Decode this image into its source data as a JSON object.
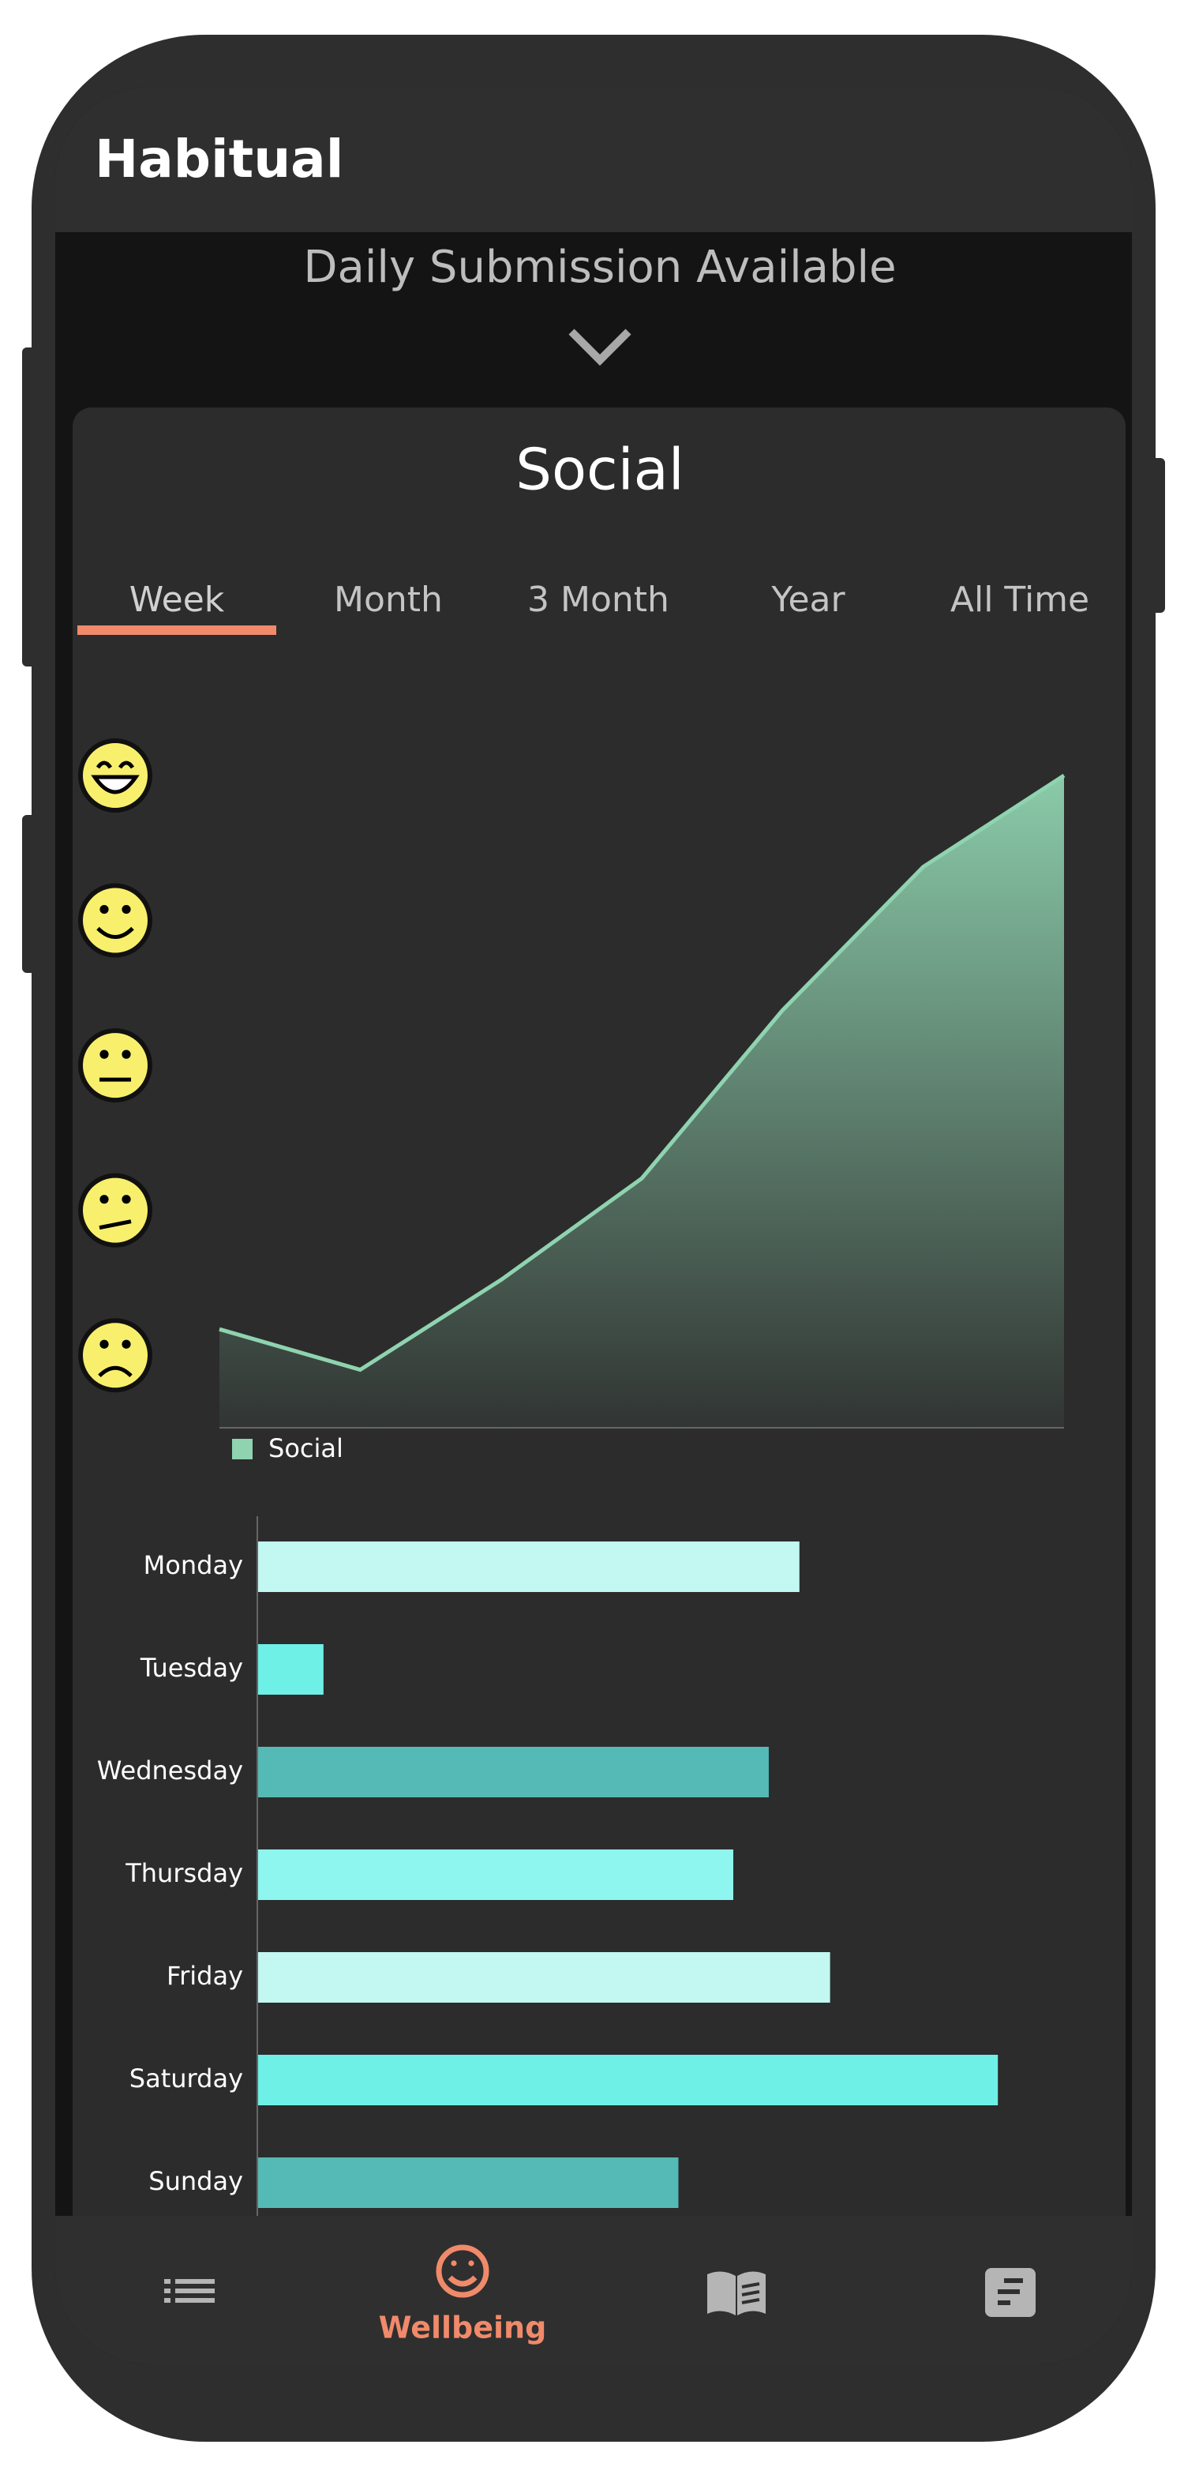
{
  "header": {
    "title": "Habitual"
  },
  "banner": {
    "text": "Daily Submission Available"
  },
  "card": {
    "title": "Social",
    "tabs": [
      "Week",
      "Month",
      "3 Month",
      "Year",
      "All Time"
    ],
    "selected_tab": 0
  },
  "chart_data": [
    {
      "type": "area",
      "categories": [
        null,
        null,
        null,
        null,
        null,
        null,
        null
      ],
      "series": [
        {
          "name": "Social",
          "color": "#8fd3b0",
          "values": [
            1.18,
            0.9,
            1.52,
            2.22,
            3.38,
            4.37,
            5.0
          ]
        }
      ],
      "ylim": [
        0.5,
        5
      ],
      "yticks": [
        1,
        2,
        3,
        4,
        5
      ]
    },
    {
      "type": "bar",
      "orientation": "horizontal",
      "categories": [
        "Monday",
        "Tuesday",
        "Wednesday",
        "Thursday",
        "Friday",
        "Saturday",
        "Sunday"
      ],
      "values": [
        3.36,
        0.41,
        3.17,
        2.95,
        3.55,
        4.59,
        2.61
      ],
      "colors": [
        "#c2f7f2",
        "#6ef0e6",
        "#55bab5",
        "#8ef5ef",
        "#c2f7f2",
        "#6ef0e6",
        "#55bab5"
      ],
      "xlim": [
        0,
        5
      ]
    }
  ],
  "nav": {
    "active_label": "Wellbeing"
  }
}
